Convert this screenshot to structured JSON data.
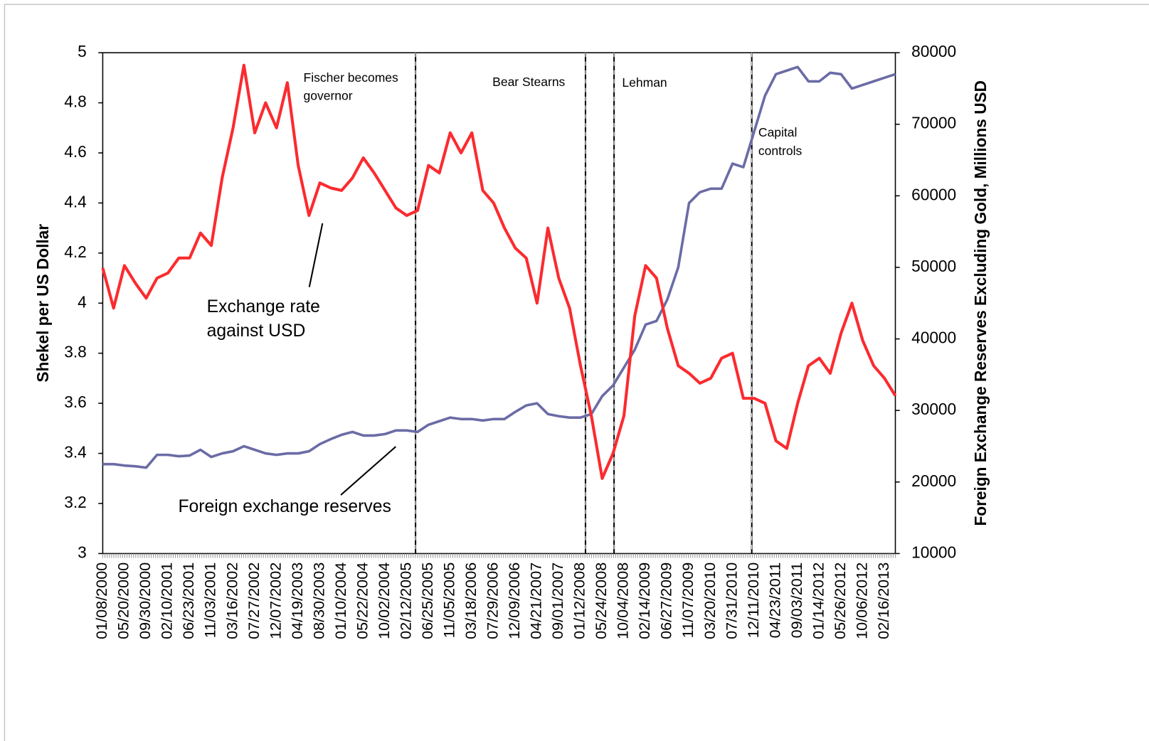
{
  "chart_data": {
    "type": "line",
    "ylabel": "Shekel per US Dollar",
    "y2label": "Foreign Exchange Reserves Excluding Gold, Millions USD",
    "categories": [
      "01/08/2000",
      null,
      "05/20/2000",
      null,
      "09/30/2000",
      null,
      "02/10/2001",
      null,
      "06/23/2001",
      null,
      "11/03/2001",
      null,
      "03/16/2002",
      null,
      "07/27/2002",
      null,
      "12/07/2002",
      null,
      "04/19/2003",
      null,
      "08/30/2003",
      null,
      "01/10/2004",
      null,
      "05/22/2004",
      null,
      "10/02/2004",
      null,
      "02/12/2005",
      null,
      "06/25/2005",
      null,
      "11/05/2005",
      null,
      "03/18/2006",
      null,
      "07/29/2006",
      null,
      "12/09/2006",
      null,
      "04/21/2007",
      null,
      "09/01/2007",
      null,
      "01/12/2008",
      null,
      "05/24/2008",
      null,
      "10/04/2008",
      null,
      "02/14/2009",
      null,
      "06/27/2009",
      null,
      "11/07/2009",
      null,
      "03/20/2010",
      null,
      "07/31/2010",
      null,
      "12/11/2010",
      null,
      "04/23/2011",
      null,
      "09/03/2011",
      null,
      "01/14/2012",
      null,
      "05/26/2012",
      null,
      "10/06/2012",
      null,
      "02/16/2013",
      null
    ],
    "series": [
      {
        "name": "Exchange rate against USD",
        "color": "#fb2b2f",
        "axis": "y",
        "values": [
          4.14,
          3.98,
          4.15,
          4.08,
          4.02,
          4.1,
          4.12,
          4.18,
          4.18,
          4.28,
          4.23,
          4.5,
          4.7,
          4.95,
          4.68,
          4.8,
          4.7,
          4.88,
          4.55,
          4.35,
          4.48,
          4.46,
          4.45,
          4.5,
          4.58,
          4.52,
          4.45,
          4.38,
          4.35,
          4.37,
          4.55,
          4.52,
          4.68,
          4.6,
          4.68,
          4.45,
          4.4,
          4.3,
          4.22,
          4.18,
          4.0,
          4.3,
          4.1,
          3.98,
          3.75,
          3.55,
          3.3,
          3.4,
          3.55,
          3.95,
          4.15,
          4.1,
          3.9,
          3.75,
          3.72,
          3.68,
          3.7,
          3.78,
          3.8,
          3.62,
          3.62,
          3.6,
          3.45,
          3.42,
          3.6,
          3.75,
          3.78,
          3.72,
          3.88,
          4.0,
          3.85,
          3.75,
          3.7,
          3.63
        ]
      },
      {
        "name": "Foreign exchange reserves",
        "color": "#6b6ba6",
        "axis": "y2",
        "values": [
          22500,
          22500,
          22300,
          22200,
          22000,
          23800,
          23800,
          23600,
          23700,
          24500,
          23500,
          24000,
          24300,
          25000,
          24500,
          24000,
          23800,
          24000,
          24000,
          24300,
          25300,
          26000,
          26600,
          27000,
          26500,
          26500,
          26700,
          27200,
          27200,
          27000,
          28000,
          28500,
          29000,
          28800,
          28800,
          28600,
          28800,
          28800,
          29800,
          30700,
          31000,
          29500,
          29200,
          29000,
          29000,
          29500,
          32000,
          33500,
          36000,
          38500,
          42000,
          42500,
          45500,
          50000,
          59000,
          60500,
          61000,
          61000,
          64500,
          64000,
          69000,
          74000,
          77000,
          77500,
          78000,
          76000,
          76000,
          77200,
          77000,
          75000,
          75500,
          76000,
          76500,
          77000
        ]
      }
    ],
    "ylim": [
      3,
      5
    ],
    "yticks": [
      3,
      3.2,
      3.4,
      3.6,
      3.8,
      4,
      4.2,
      4.4,
      4.6,
      4.8,
      5
    ],
    "y2lim": [
      10000,
      80000
    ],
    "y2ticks": [
      10000,
      20000,
      30000,
      40000,
      50000,
      60000,
      70000,
      80000
    ],
    "events": [
      {
        "lines": [
          "Fischer becomes",
          "governor"
        ]
      },
      {
        "lines": [
          "Bear Stearns"
        ]
      },
      {
        "lines": [
          "Lehman"
        ]
      },
      {
        "lines": [
          "Capital",
          "controls"
        ]
      }
    ],
    "callouts": [
      {
        "lines": [
          "Exchange rate",
          "against USD"
        ]
      },
      {
        "lines": [
          "Foreign exchange reserves"
        ]
      }
    ]
  }
}
